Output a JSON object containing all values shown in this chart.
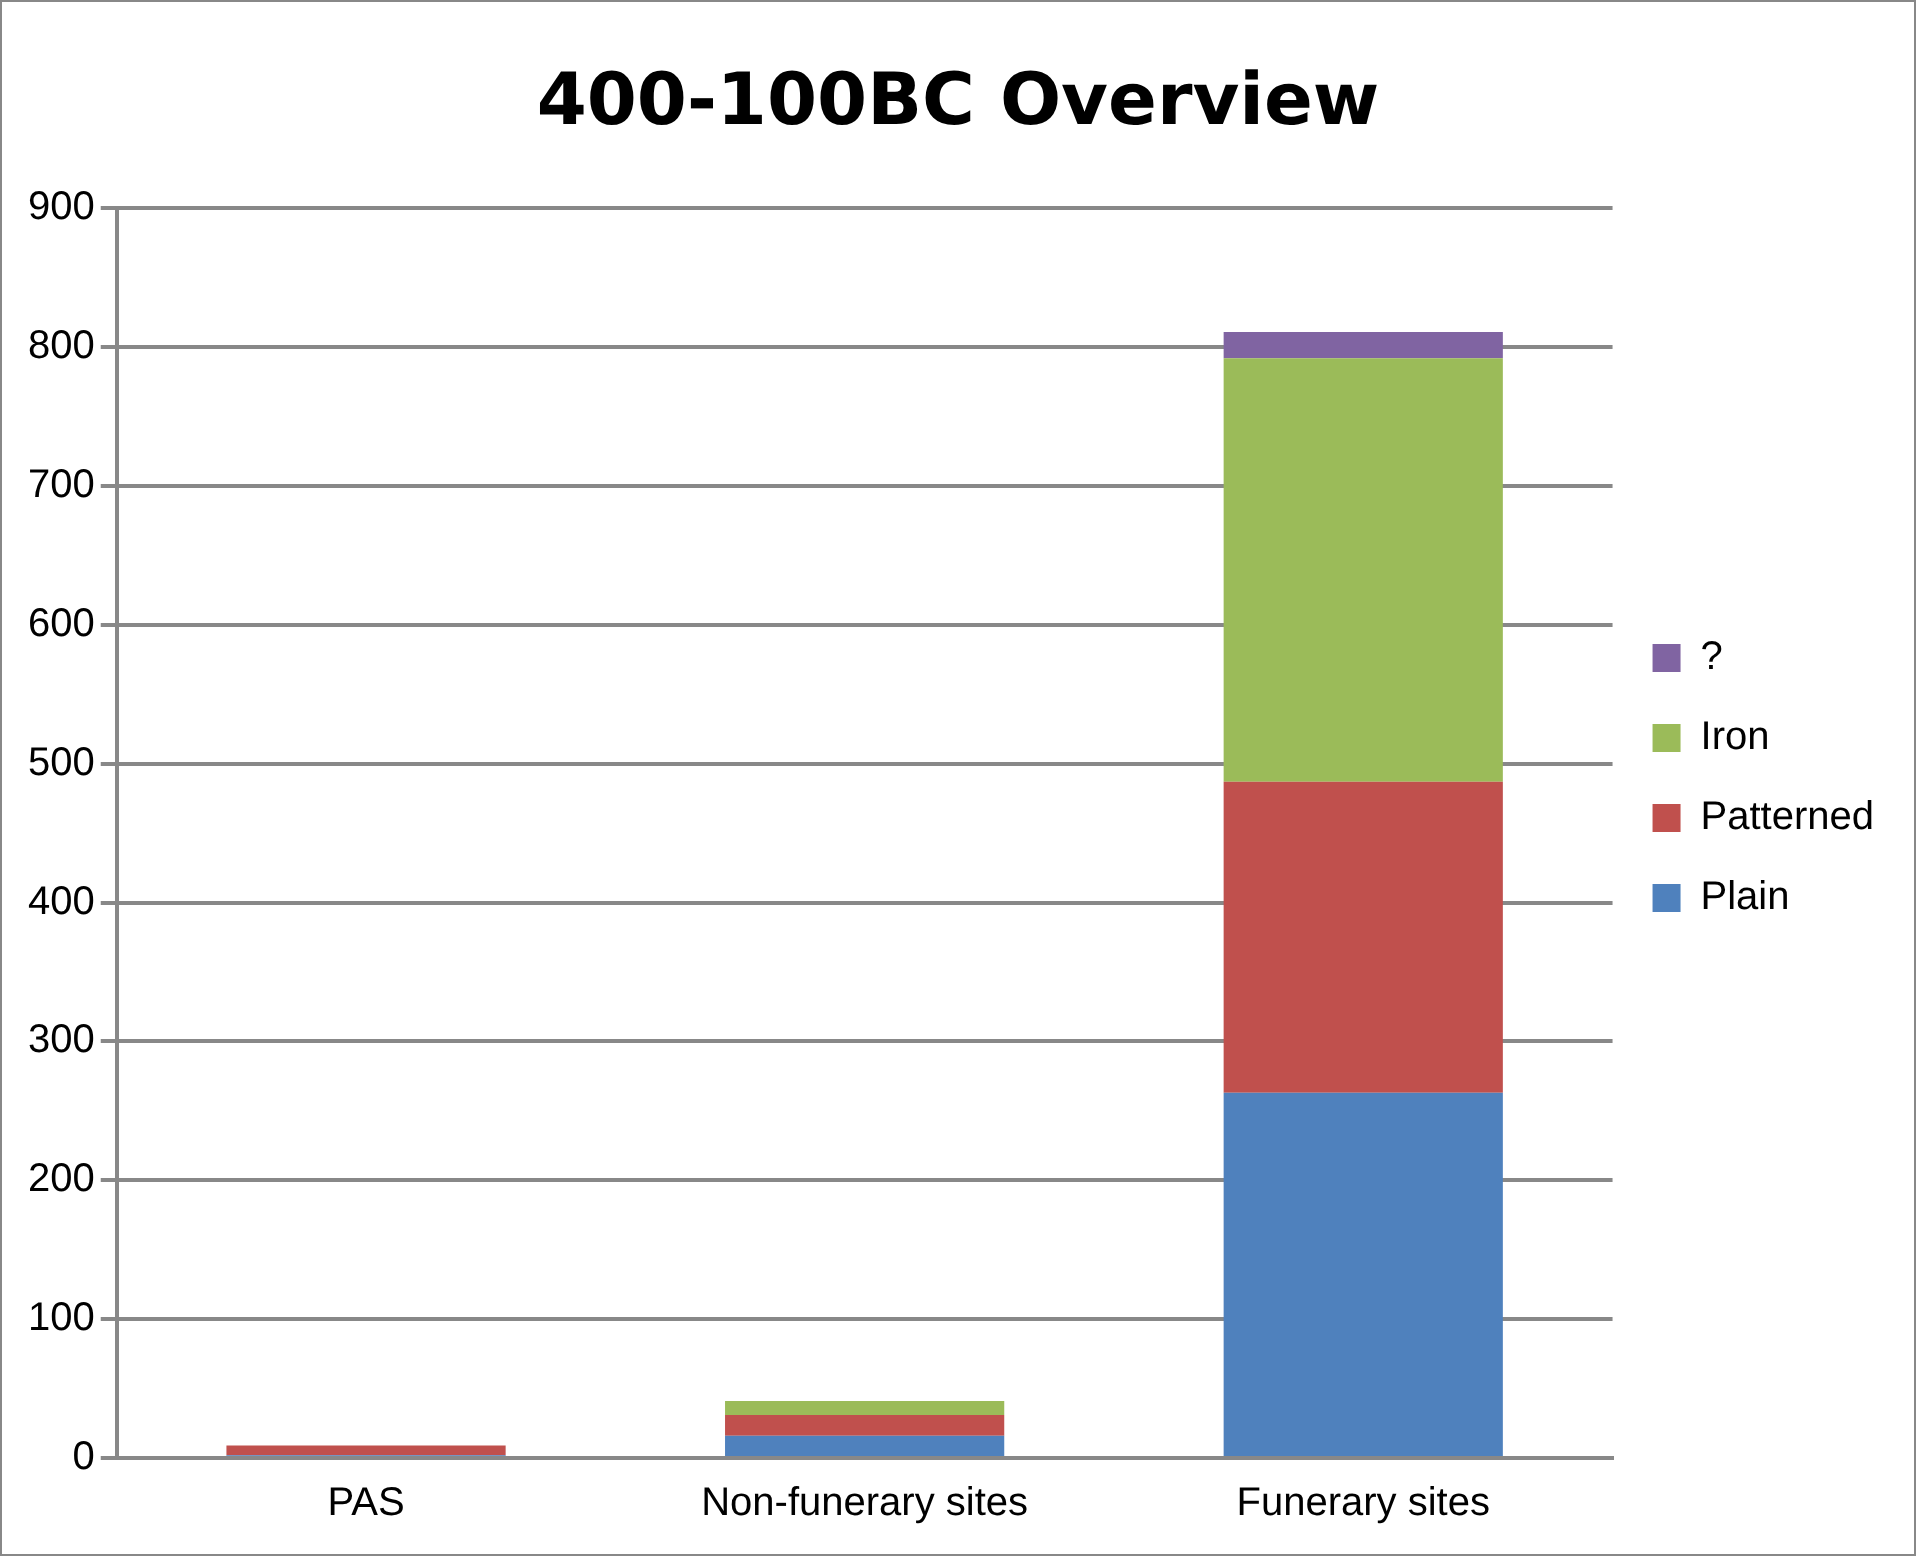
{
  "chart_data": {
    "type": "bar",
    "title": "400-100BC Overview",
    "stacked": true,
    "categories": [
      "PAS",
      "Non-funerary sites",
      "Funerary sites"
    ],
    "series": [
      {
        "name": "Plain",
        "color": "#4f81bd",
        "values": [
          2,
          16,
          263
        ]
      },
      {
        "name": "Patterned",
        "color": "#c0504d",
        "values": [
          7,
          15,
          224
        ]
      },
      {
        "name": "Iron",
        "color": "#9bbb59",
        "values": [
          0,
          10,
          305
        ]
      },
      {
        "name": "?",
        "color": "#8064a2",
        "values": [
          0,
          0,
          19
        ]
      }
    ],
    "ylim": [
      0,
      900
    ],
    "yticks": [
      0,
      100,
      200,
      300,
      400,
      500,
      600,
      700,
      800,
      900
    ],
    "grid": "y",
    "legend": "right"
  }
}
